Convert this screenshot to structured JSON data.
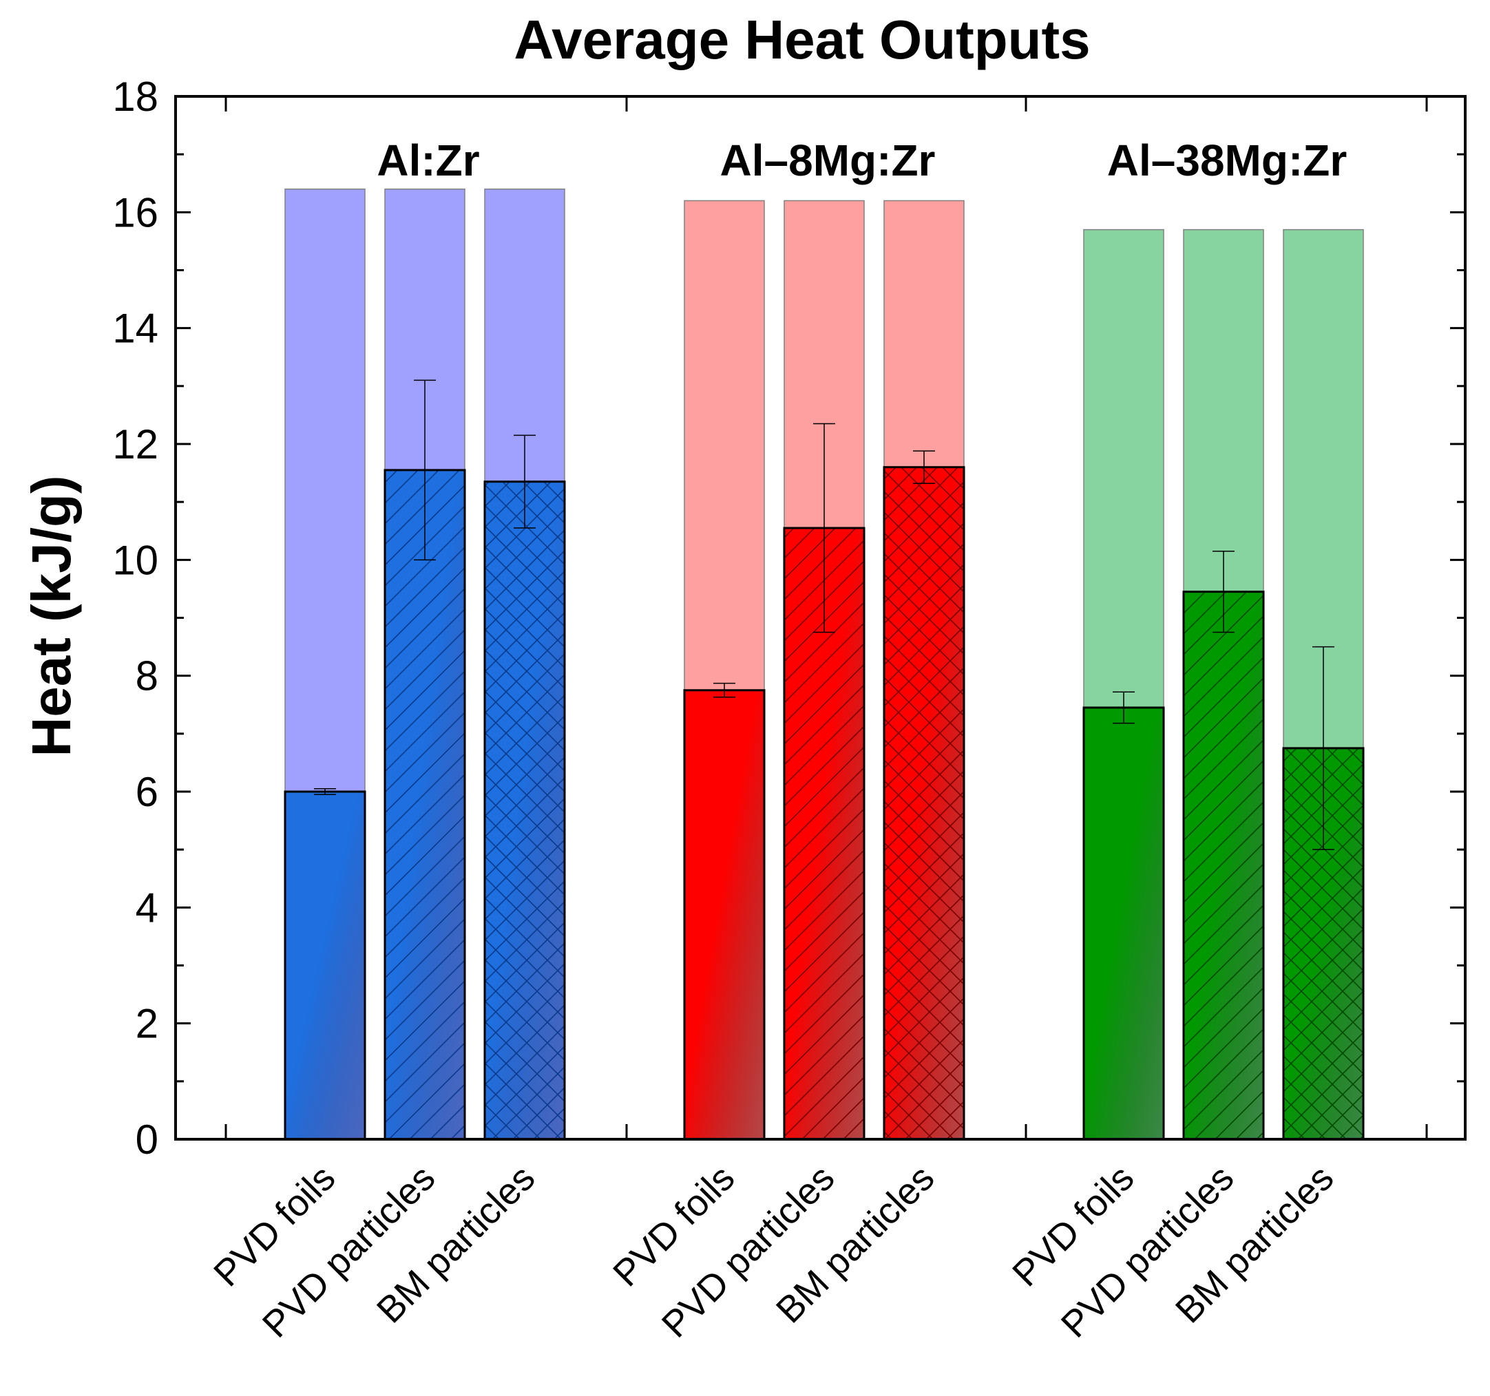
{
  "chart_data": {
    "type": "bar",
    "title": "Average Heat Outputs",
    "xlabel": "",
    "ylabel": "Heat (kJ/g)",
    "ylim": [
      0,
      18
    ],
    "yticks": [
      0,
      2,
      4,
      6,
      8,
      10,
      12,
      14,
      16,
      18
    ],
    "categories": [
      "PVD foils",
      "PVD particles",
      "BM particles"
    ],
    "groups": [
      {
        "name": "Al:Zr",
        "theoretical": 16.4,
        "values": [
          6.0,
          11.55,
          11.35
        ],
        "errors": [
          0.05,
          1.55,
          0.8
        ],
        "color": "#1e6fe0",
        "light_color": "#a0a0ff",
        "dark_color": "#0a3a8c"
      },
      {
        "name": "Al–8Mg:Zr",
        "theoretical": 16.2,
        "values": [
          7.75,
          10.55,
          11.6
        ],
        "errors": [
          0.12,
          1.8,
          0.28
        ],
        "color": "#ff0000",
        "light_color": "#ffa0a0",
        "dark_color": "#7a0000"
      },
      {
        "name": "Al–38Mg:Zr",
        "theoretical": 15.7,
        "values": [
          7.45,
          9.45,
          6.75
        ],
        "errors": [
          0.27,
          0.7,
          1.75
        ],
        "color": "#009a00",
        "light_color": "#88d4a0",
        "dark_color": "#004a00"
      }
    ],
    "patterns": [
      "solid",
      "diagonal-hatch",
      "cross-hatch"
    ]
  }
}
